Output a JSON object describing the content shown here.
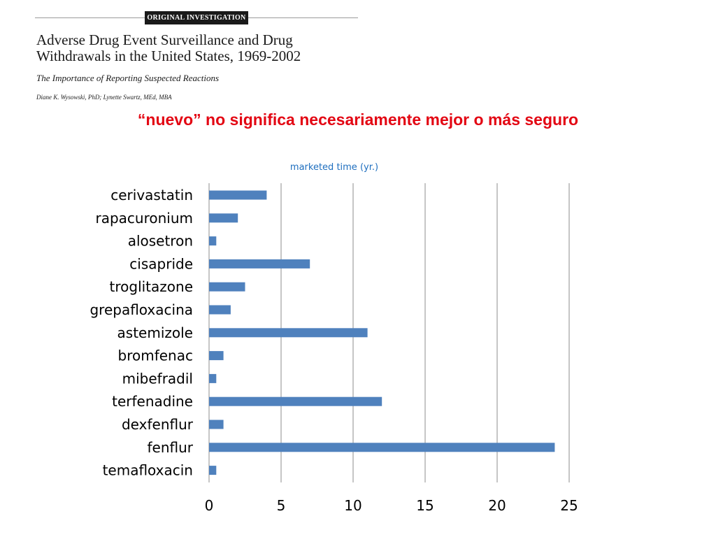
{
  "article": {
    "badge": "ORIGINAL INVESTIGATION",
    "title": "Adverse Drug Event Surveillance and Drug Withdrawals in the United States, 1969-2002",
    "subtitle": "The Importance of Reporting Suspected Reactions",
    "authors": "Diane K. Wysowski, PhD; Lynette Swartz, MEd, MBA"
  },
  "headline": "“nuevo” no significa necesariamente mejor o más seguro",
  "chart_data": {
    "type": "bar",
    "orientation": "horizontal",
    "title": "marketed time (yr.)",
    "categories": [
      "cerivastatin",
      "rapacuronium",
      "alosetron",
      "cisapride",
      "troglitazone",
      "grepafloxacina",
      "astemizole",
      "bromfenac",
      "mibefradil",
      "terfenadine",
      "dexfenflur",
      "fenflur",
      "temafloxacin"
    ],
    "values": [
      4,
      2,
      0.5,
      7,
      2.5,
      1.5,
      11,
      1,
      0.5,
      12,
      1,
      24,
      0.5
    ],
    "xlim": [
      0,
      25
    ],
    "xticks": [
      "0",
      "5",
      "10",
      "15",
      "20",
      "25"
    ],
    "grid": "vertical",
    "legend": "none",
    "colors": {
      "bar": "#4f81bd",
      "grid": "#8c8c8c",
      "title": "#1f6fbf"
    }
  }
}
